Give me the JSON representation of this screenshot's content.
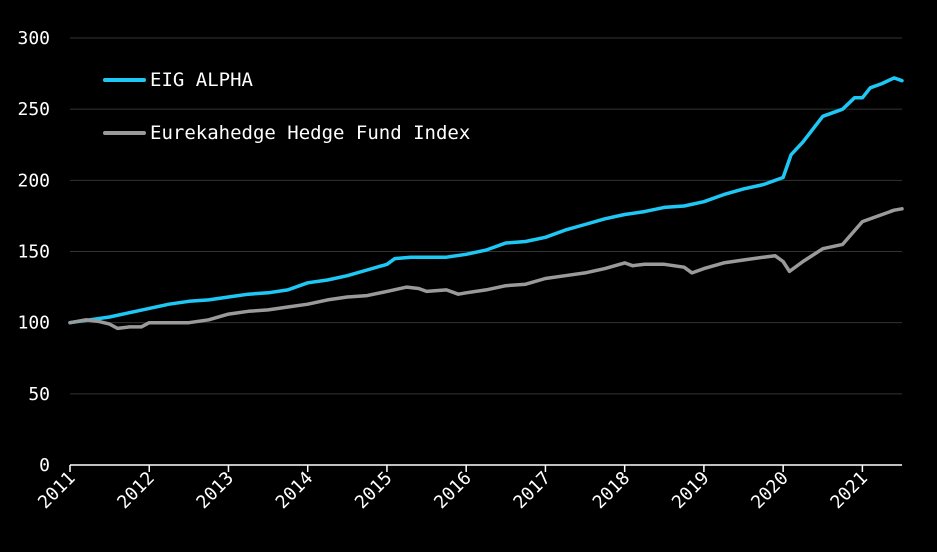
{
  "chart_data": {
    "type": "line",
    "title": "",
    "xlabel": "",
    "ylabel": "",
    "xlim": [
      2011.0,
      2021.5
    ],
    "ylim": [
      0,
      300
    ],
    "yticks": [
      0,
      50,
      100,
      150,
      200,
      250,
      300
    ],
    "xtick_labels": [
      "2011",
      "2012",
      "2013",
      "2014",
      "2015",
      "2016",
      "2017",
      "2018",
      "2019",
      "2020",
      "2021"
    ],
    "grid": "horizontal",
    "legend_position": "top-left",
    "background": "#000000",
    "series": [
      {
        "name": "EIG ALPHA",
        "color": "#1ec8f5",
        "points": [
          [
            2011.0,
            100
          ],
          [
            2011.25,
            102
          ],
          [
            2011.5,
            104
          ],
          [
            2011.75,
            107
          ],
          [
            2012.0,
            110
          ],
          [
            2012.25,
            113
          ],
          [
            2012.5,
            115
          ],
          [
            2012.75,
            116
          ],
          [
            2013.0,
            118
          ],
          [
            2013.25,
            120
          ],
          [
            2013.5,
            121
          ],
          [
            2013.75,
            123
          ],
          [
            2014.0,
            128
          ],
          [
            2014.25,
            130
          ],
          [
            2014.5,
            133
          ],
          [
            2014.75,
            137
          ],
          [
            2015.0,
            141
          ],
          [
            2015.1,
            145
          ],
          [
            2015.3,
            146
          ],
          [
            2015.5,
            146
          ],
          [
            2015.75,
            146
          ],
          [
            2016.0,
            148
          ],
          [
            2016.25,
            151
          ],
          [
            2016.5,
            156
          ],
          [
            2016.75,
            157
          ],
          [
            2017.0,
            160
          ],
          [
            2017.25,
            165
          ],
          [
            2017.5,
            169
          ],
          [
            2017.75,
            173
          ],
          [
            2018.0,
            176
          ],
          [
            2018.25,
            178
          ],
          [
            2018.5,
            181
          ],
          [
            2018.75,
            182
          ],
          [
            2019.0,
            185
          ],
          [
            2019.25,
            190
          ],
          [
            2019.5,
            194
          ],
          [
            2019.75,
            197
          ],
          [
            2020.0,
            202
          ],
          [
            2020.1,
            218
          ],
          [
            2020.25,
            227
          ],
          [
            2020.5,
            245
          ],
          [
            2020.75,
            250
          ],
          [
            2020.9,
            258
          ],
          [
            2021.0,
            258
          ],
          [
            2021.1,
            265
          ],
          [
            2021.25,
            268
          ],
          [
            2021.4,
            272
          ],
          [
            2021.5,
            270
          ]
        ]
      },
      {
        "name": "Eurekahedge Hedge Fund Index",
        "color": "#9a9a9a",
        "points": [
          [
            2011.0,
            100
          ],
          [
            2011.2,
            102
          ],
          [
            2011.35,
            101
          ],
          [
            2011.5,
            99
          ],
          [
            2011.6,
            96
          ],
          [
            2011.75,
            97
          ],
          [
            2011.9,
            97
          ],
          [
            2012.0,
            100
          ],
          [
            2012.25,
            100
          ],
          [
            2012.5,
            100
          ],
          [
            2012.75,
            102
          ],
          [
            2013.0,
            106
          ],
          [
            2013.25,
            108
          ],
          [
            2013.5,
            109
          ],
          [
            2013.75,
            111
          ],
          [
            2014.0,
            113
          ],
          [
            2014.25,
            116
          ],
          [
            2014.5,
            118
          ],
          [
            2014.75,
            119
          ],
          [
            2015.0,
            122
          ],
          [
            2015.25,
            125
          ],
          [
            2015.4,
            124
          ],
          [
            2015.5,
            122
          ],
          [
            2015.75,
            123
          ],
          [
            2015.9,
            120
          ],
          [
            2016.0,
            121
          ],
          [
            2016.25,
            123
          ],
          [
            2016.5,
            126
          ],
          [
            2016.75,
            127
          ],
          [
            2017.0,
            131
          ],
          [
            2017.25,
            133
          ],
          [
            2017.5,
            135
          ],
          [
            2017.75,
            138
          ],
          [
            2018.0,
            142
          ],
          [
            2018.1,
            140
          ],
          [
            2018.25,
            141
          ],
          [
            2018.5,
            141
          ],
          [
            2018.75,
            139
          ],
          [
            2018.85,
            135
          ],
          [
            2019.0,
            138
          ],
          [
            2019.25,
            142
          ],
          [
            2019.5,
            144
          ],
          [
            2019.75,
            146
          ],
          [
            2019.9,
            147
          ],
          [
            2020.0,
            143
          ],
          [
            2020.08,
            136
          ],
          [
            2020.25,
            143
          ],
          [
            2020.5,
            152
          ],
          [
            2020.75,
            155
          ],
          [
            2021.0,
            171
          ],
          [
            2021.25,
            176
          ],
          [
            2021.4,
            179
          ],
          [
            2021.5,
            180
          ]
        ]
      }
    ]
  }
}
